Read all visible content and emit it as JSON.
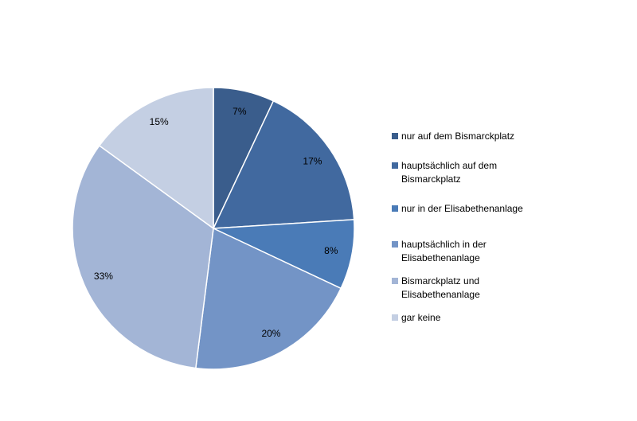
{
  "chart_data": {
    "type": "pie",
    "start": "top",
    "direction": "clockwise",
    "categories": [
      "nur auf dem Bismarckplatz",
      "hauptsächlich auf dem Bismarckplatz",
      "nur in der Elisabethenanlage",
      "hauptsächlich in der Elisabethenanlage",
      "Bismarckplatz und Elisabethenanlage",
      "gar keine"
    ],
    "legend_lines": [
      [
        "nur auf dem Bismarckplatz"
      ],
      [
        "hauptsächlich auf dem",
        "Bismarckplatz"
      ],
      [
        "nur in der Elisabethenanlage"
      ],
      [
        "hauptsächlich in der",
        "Elisabethenanlage"
      ],
      [
        "Bismarckplatz und",
        "Elisabethenanlage"
      ],
      [
        "gar keine"
      ]
    ],
    "values": [
      7,
      17,
      8,
      20,
      33,
      15
    ],
    "data_labels": [
      "7%",
      "17%",
      "8%",
      "20%",
      "33%",
      "15%"
    ],
    "colors": [
      "#3a5d8c",
      "#41699f",
      "#4a7bb7",
      "#7394c6",
      "#a3b5d6",
      "#c4cfe3"
    ],
    "legend_position": "right"
  }
}
